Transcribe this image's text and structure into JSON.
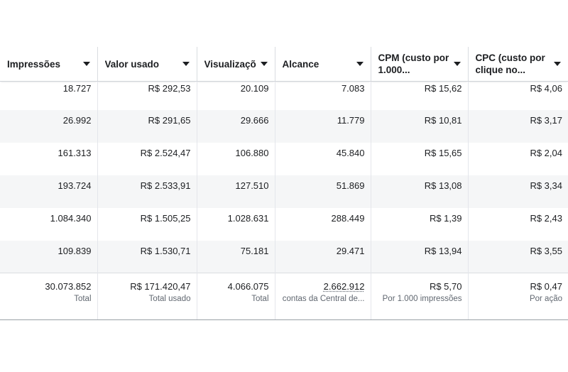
{
  "table": {
    "columns": [
      {
        "label": "Impressões"
      },
      {
        "label": "Valor usado"
      },
      {
        "label": "Visualizaçõ"
      },
      {
        "label": "Alcance"
      },
      {
        "label": "CPM (custo por 1.000..."
      },
      {
        "label": "CPC (custo por clique no..."
      }
    ],
    "rows": [
      {
        "impressoes": "18.727",
        "valor": "R$ 292,53",
        "visualizacoes": "20.109",
        "alcance": "7.083",
        "cpm": "R$ 15,62",
        "cpc": "R$ 4,06"
      },
      {
        "impressoes": "26.992",
        "valor": "R$ 291,65",
        "visualizacoes": "29.666",
        "alcance": "11.779",
        "cpm": "R$ 10,81",
        "cpc": "R$ 3,17"
      },
      {
        "impressoes": "161.313",
        "valor": "R$ 2.524,47",
        "visualizacoes": "106.880",
        "alcance": "45.840",
        "cpm": "R$ 15,65",
        "cpc": "R$ 2,04"
      },
      {
        "impressoes": "193.724",
        "valor": "R$ 2.533,91",
        "visualizacoes": "127.510",
        "alcance": "51.869",
        "cpm": "R$ 13,08",
        "cpc": "R$ 3,34"
      },
      {
        "impressoes": "1.084.340",
        "valor": "R$ 1.505,25",
        "visualizacoes": "1.028.631",
        "alcance": "288.449",
        "cpm": "R$ 1,39",
        "cpc": "R$ 2,43"
      },
      {
        "impressoes": "109.839",
        "valor": "R$ 1.530,71",
        "visualizacoes": "75.181",
        "alcance": "29.471",
        "cpm": "R$ 13,94",
        "cpc": "R$ 3,55"
      }
    ],
    "totals": {
      "impressoes": {
        "value": "30.073.852",
        "sub": "Total"
      },
      "valor": {
        "value": "R$ 171.420,47",
        "sub": "Total usado"
      },
      "visualizacoes": {
        "value": "4.066.075",
        "sub": "Total"
      },
      "alcance": {
        "value": "2.662.912",
        "sub": "contas da Central de..."
      },
      "cpm": {
        "value": "R$ 5,70",
        "sub": "Por 1.000 impressões"
      },
      "cpc": {
        "value": "R$ 0,47",
        "sub": "Por ação"
      }
    }
  },
  "colors": {
    "stripe": "#f5f6f7",
    "text": "#1c1e21",
    "muted": "#606770",
    "border": "#dadde1"
  }
}
